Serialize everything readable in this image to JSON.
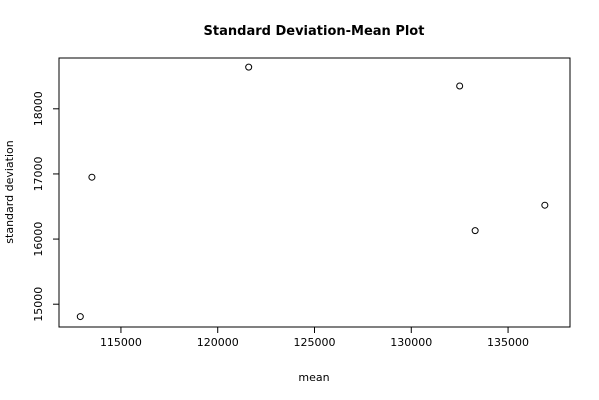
{
  "chart_data": {
    "type": "scatter",
    "title": "Standard Deviation-Mean Plot",
    "xlabel": "mean",
    "ylabel": "standard deviation",
    "xlim": [
      111800,
      138200
    ],
    "ylim": [
      14650,
      18780
    ],
    "x_ticks": [
      115000,
      120000,
      125000,
      130000,
      135000
    ],
    "y_ticks": [
      15000,
      16000,
      17000,
      18000
    ],
    "grid": false,
    "legend": "none",
    "marker": "open-circle",
    "points": [
      {
        "x": 112900,
        "y": 14810
      },
      {
        "x": 113500,
        "y": 16950
      },
      {
        "x": 121600,
        "y": 18640
      },
      {
        "x": 132500,
        "y": 18350
      },
      {
        "x": 133300,
        "y": 16130
      },
      {
        "x": 136900,
        "y": 16520
      }
    ]
  }
}
